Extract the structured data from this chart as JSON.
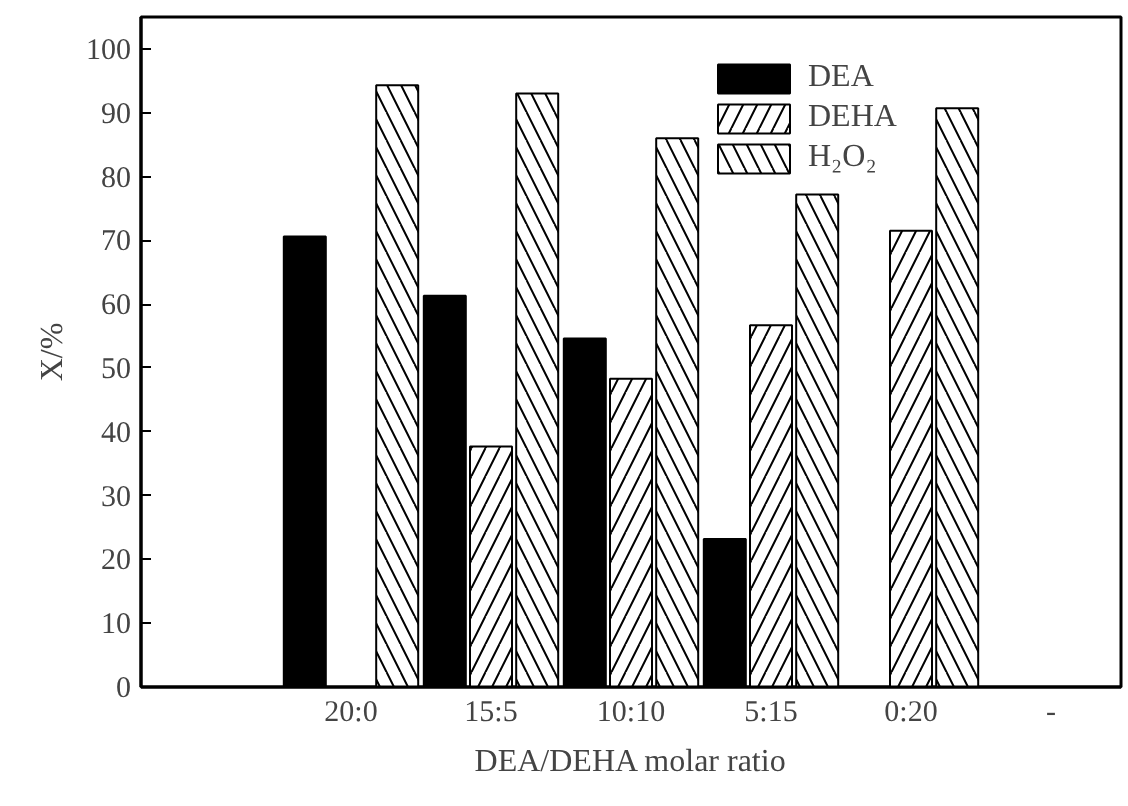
{
  "chart_data": {
    "type": "bar",
    "xlabel": "DEA/DEHA molar ratio",
    "ylabel": "X/%",
    "categories": [
      null,
      "20:0",
      "15:5",
      "10:10",
      "5:15",
      "0:20",
      "-"
    ],
    "series": [
      {
        "name": "DEA",
        "color": "#000000",
        "values": [
          null,
          70.6,
          61.3,
          54.6,
          23.2,
          null,
          null
        ]
      },
      {
        "name": "DEHA",
        "color": "#ffffff",
        "values": [
          null,
          null,
          37.7,
          48.3,
          56.7,
          71.5,
          null
        ]
      },
      {
        "name": "H₂O₂",
        "color": "#ffffff",
        "values": [
          null,
          94.3,
          93.0,
          86.0,
          77.2,
          90.7,
          null
        ]
      }
    ],
    "ylim": [
      0,
      105
    ],
    "yticks": [
      0,
      10,
      20,
      30,
      40,
      50,
      60,
      70,
      80,
      90,
      100
    ],
    "grid": false,
    "legend": "top right"
  }
}
